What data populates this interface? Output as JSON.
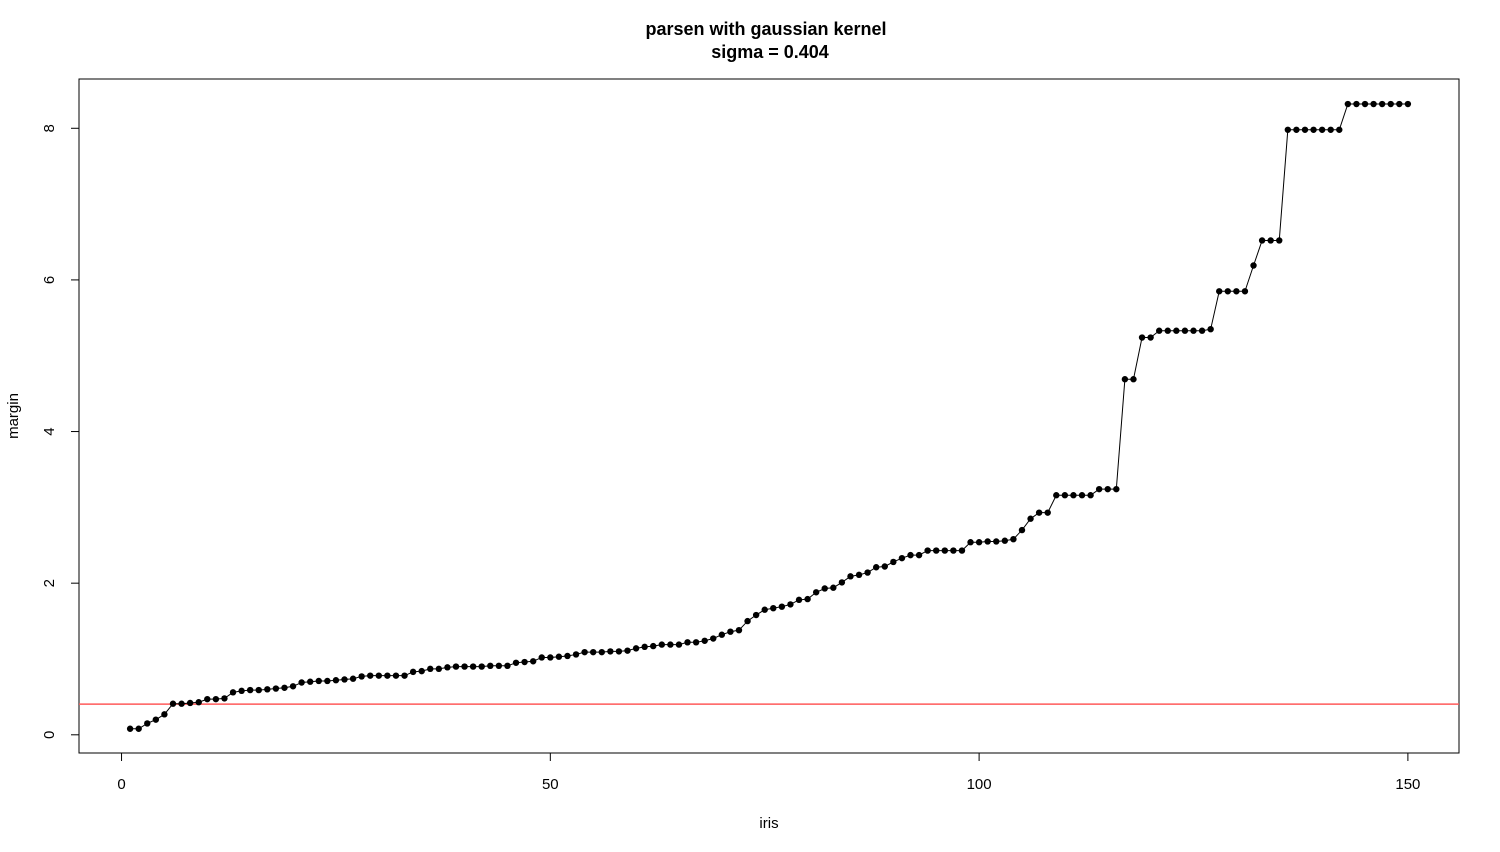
{
  "chart_data": {
    "type": "line",
    "title": "parsen with gaussian kernel",
    "subtitle": "sigma = 0.404",
    "xlabel": "iris",
    "ylabel": "margin",
    "x": [
      1,
      2,
      3,
      4,
      5,
      6,
      7,
      8,
      9,
      10,
      11,
      12,
      13,
      14,
      15,
      16,
      17,
      18,
      19,
      20,
      21,
      22,
      23,
      24,
      25,
      26,
      27,
      28,
      29,
      30,
      31,
      32,
      33,
      34,
      35,
      36,
      37,
      38,
      39,
      40,
      41,
      42,
      43,
      44,
      45,
      46,
      47,
      48,
      49,
      50,
      51,
      52,
      53,
      54,
      55,
      56,
      57,
      58,
      59,
      60,
      61,
      62,
      63,
      64,
      65,
      66,
      67,
      68,
      69,
      70,
      71,
      72,
      73,
      74,
      75,
      76,
      77,
      78,
      79,
      80,
      81,
      82,
      83,
      84,
      85,
      86,
      87,
      88,
      89,
      90,
      91,
      92,
      93,
      94,
      95,
      96,
      97,
      98,
      99,
      100,
      101,
      102,
      103,
      104,
      105,
      106,
      107,
      108,
      109,
      110,
      111,
      112,
      113,
      114,
      115,
      116,
      117,
      118,
      119,
      120,
      121,
      122,
      123,
      124,
      125,
      126,
      127,
      128,
      129,
      130,
      131,
      132,
      133,
      134,
      135,
      136,
      137,
      138,
      139,
      140,
      141,
      142,
      143,
      144,
      145,
      146,
      147,
      148,
      149,
      150
    ],
    "series": [
      {
        "color": "#000000",
        "values": [
          0.08,
          0.08,
          0.15,
          0.2,
          0.27,
          0.41,
          0.41,
          0.42,
          0.43,
          0.47,
          0.47,
          0.48,
          0.56,
          0.58,
          0.59,
          0.59,
          0.6,
          0.61,
          0.62,
          0.64,
          0.69,
          0.7,
          0.71,
          0.71,
          0.72,
          0.73,
          0.74,
          0.77,
          0.78,
          0.78,
          0.78,
          0.78,
          0.78,
          0.83,
          0.84,
          0.87,
          0.87,
          0.89,
          0.9,
          0.9,
          0.9,
          0.9,
          0.91,
          0.91,
          0.91,
          0.95,
          0.96,
          0.97,
          1.02,
          1.02,
          1.03,
          1.04,
          1.06,
          1.09,
          1.09,
          1.09,
          1.1,
          1.1,
          1.11,
          1.14,
          1.16,
          1.17,
          1.19,
          1.19,
          1.19,
          1.22,
          1.22,
          1.24,
          1.27,
          1.32,
          1.36,
          1.38,
          1.5,
          1.58,
          1.65,
          1.67,
          1.69,
          1.72,
          1.78,
          1.79,
          1.88,
          1.93,
          1.94,
          2.01,
          2.09,
          2.11,
          2.14,
          2.21,
          2.22,
          2.28,
          2.33,
          2.37,
          2.37,
          2.43,
          2.43,
          2.43,
          2.43,
          2.43,
          2.54,
          2.54,
          2.55,
          2.55,
          2.56,
          2.58,
          2.7,
          2.85,
          2.93,
          2.93,
          3.16,
          3.16,
          3.16,
          3.16,
          3.16,
          3.24,
          3.24,
          3.24,
          4.69,
          4.69,
          5.24,
          5.24,
          5.33,
          5.33,
          5.33,
          5.33,
          5.33,
          5.33,
          5.35,
          5.85,
          5.85,
          5.85,
          5.85,
          6.19,
          6.52,
          6.52,
          6.52,
          7.98,
          7.98,
          7.98,
          7.98,
          7.98,
          7.98,
          7.98,
          8.32,
          8.32,
          8.32,
          8.32,
          8.32,
          8.32,
          8.32,
          8.32
        ]
      }
    ],
    "hline": {
      "value": 0.404,
      "color": "#ff5a5a"
    },
    "xlim": [
      -4.96,
      155.96
    ],
    "ylim": [
      -0.24,
      8.65
    ],
    "xticks": [
      0,
      50,
      100,
      150
    ],
    "yticks": [
      0,
      2,
      4,
      6,
      8
    ]
  }
}
